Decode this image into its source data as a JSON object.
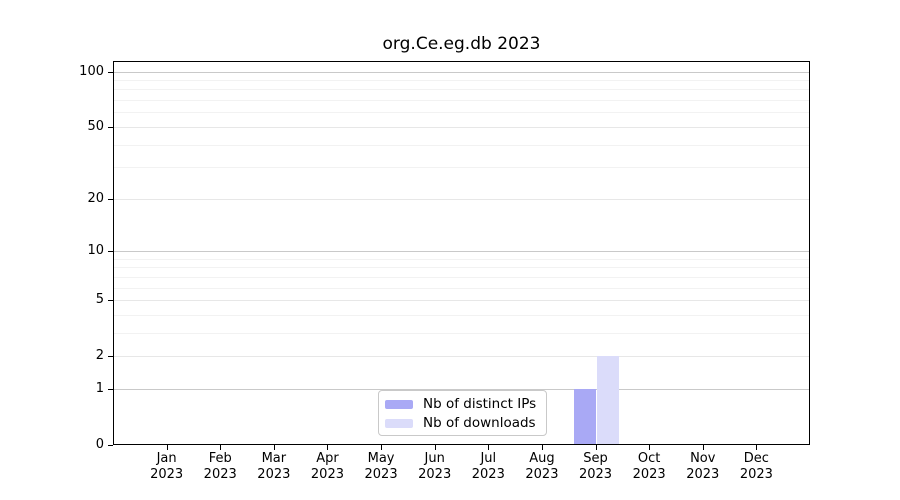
{
  "chart_data": {
    "type": "bar",
    "title": "org.Ce.eg.db 2023",
    "categories": [
      "Jan 2023",
      "Feb 2023",
      "Mar 2023",
      "Apr 2023",
      "May 2023",
      "Jun 2023",
      "Jul 2023",
      "Aug 2023",
      "Sep 2023",
      "Oct 2023",
      "Nov 2023",
      "Dec 2023"
    ],
    "series": [
      {
        "name": "Nb of distinct IPs",
        "color": "#a9a9f5",
        "values": [
          0,
          0,
          0,
          0,
          0,
          0,
          0,
          0,
          1,
          0,
          0,
          0
        ]
      },
      {
        "name": "Nb of downloads",
        "color": "#dbdcfa",
        "values": [
          0,
          0,
          0,
          0,
          0,
          0,
          0,
          0,
          2,
          0,
          0,
          0
        ]
      }
    ],
    "xlabel": "",
    "ylabel": "",
    "yscale": "log1p",
    "ylim": [
      0,
      115
    ],
    "ytick_values": [
      0,
      1,
      2,
      5,
      10,
      20,
      50,
      100
    ],
    "grid": true,
    "legend_position": "bottom-center-inside"
  }
}
